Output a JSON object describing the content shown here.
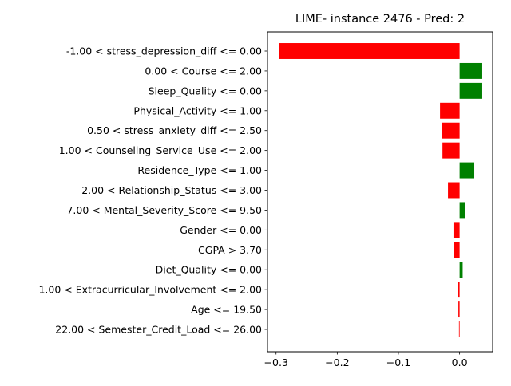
{
  "chart_data": {
    "type": "bar",
    "orientation": "horizontal",
    "title": "LIME- instance 2476 - Pred: 2",
    "xlabel": "",
    "ylabel": "",
    "xlim": [
      -0.314,
      0.054
    ],
    "xticks": [
      -0.3,
      -0.2,
      -0.1,
      0.0
    ],
    "xtick_labels": [
      "−0.3",
      "−0.2",
      "−0.1",
      "0.0"
    ],
    "grid": false,
    "legend": "none",
    "colors": {
      "positive": "#008000",
      "negative": "#ff0000"
    },
    "categories": [
      "-1.00 < stress_depression_diff <= 0.00",
      "0.00 < Course <= 2.00",
      "Sleep_Quality <= 0.00",
      "Physical_Activity <= 1.00",
      "0.50 < stress_anxiety_diff <= 2.50",
      "1.00 < Counseling_Service_Use <= 2.00",
      "Residence_Type <= 1.00",
      "2.00 < Relationship_Status <= 3.00",
      "7.00 < Mental_Severity_Score <= 9.50",
      "Gender <= 0.00",
      "CGPA > 3.70",
      "Diet_Quality <= 0.00",
      "1.00 < Extracurricular_Involvement <= 2.00",
      "Age <= 19.50",
      "22.00 < Semester_Credit_Load <= 26.00"
    ],
    "values": [
      -0.295,
      0.037,
      0.037,
      -0.032,
      -0.029,
      -0.028,
      0.024,
      -0.019,
      0.009,
      -0.01,
      -0.009,
      0.005,
      -0.003,
      -0.002,
      -0.001
    ]
  }
}
